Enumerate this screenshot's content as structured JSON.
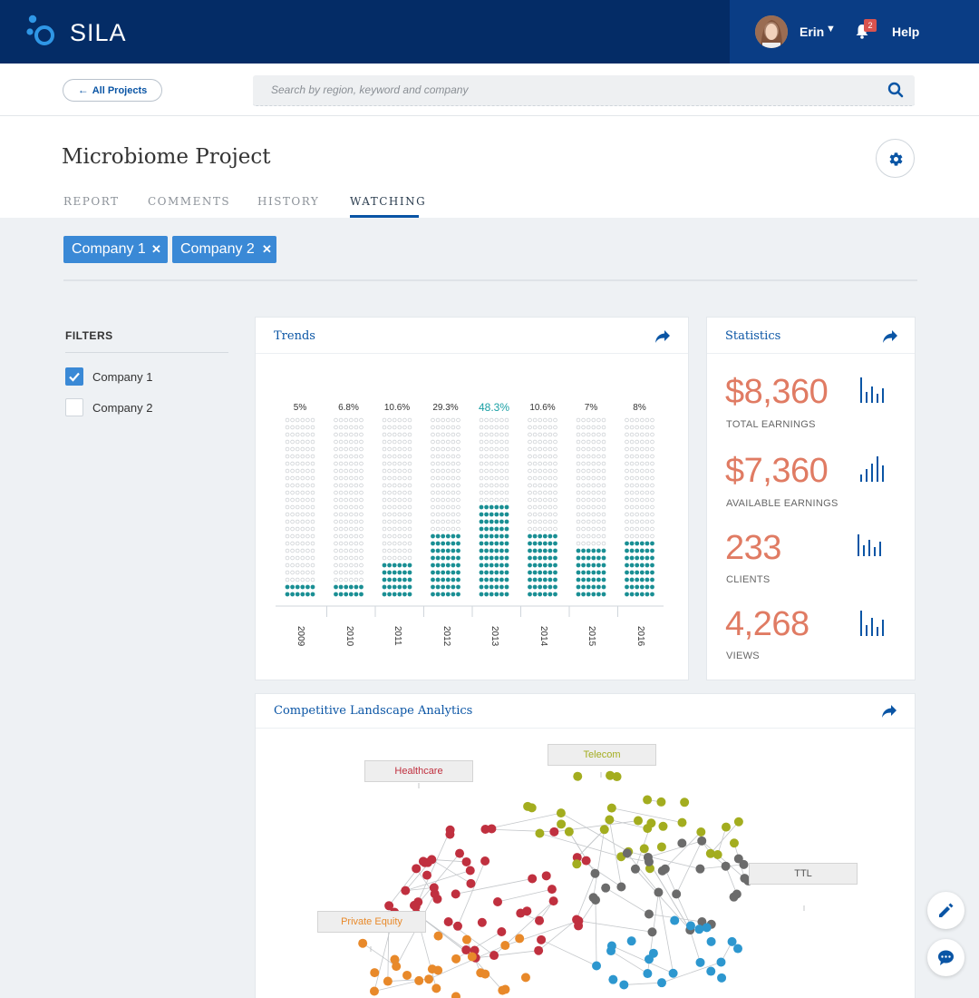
{
  "app": {
    "brand": "SILA"
  },
  "user": {
    "name": "Erin",
    "notifications": "2",
    "help_label": "Help"
  },
  "nav": {
    "back_label": "All Projects"
  },
  "search": {
    "placeholder": "Search by region, keyword and company"
  },
  "page": {
    "title": "Microbiome Project",
    "tabs": [
      {
        "label": "REPORT"
      },
      {
        "label": "COMMENTS"
      },
      {
        "label": "HISTORY"
      },
      {
        "label": "WATCHING"
      }
    ],
    "active_tab": "WATCHING"
  },
  "tags": [
    {
      "label": "Company 1"
    },
    {
      "label": "Company 2"
    }
  ],
  "filters": {
    "title": "FILTERS",
    "items": [
      {
        "label": "Company 1",
        "checked": true
      },
      {
        "label": "Company 2",
        "checked": false
      }
    ]
  },
  "trends": {
    "title": "Trends",
    "chart_data": {
      "type": "bar",
      "style": "dot-matrix",
      "categories": [
        "2009",
        "2010",
        "2011",
        "2012",
        "2013",
        "2014",
        "2015",
        "2016"
      ],
      "value_labels": [
        "5%",
        "6.8%",
        "10.6%",
        "29.3%",
        "48.3%",
        "10.6%",
        "7%",
        "8%"
      ],
      "highlight": "2013",
      "filled_rows": [
        2,
        2,
        5,
        9,
        13,
        9,
        7,
        8
      ],
      "total_rows": 25,
      "colors": {
        "filled": "#1a8f94",
        "empty": "#c9cdd1",
        "highlight_label": "#1aa0a5"
      }
    }
  },
  "statistics": {
    "title": "Statistics",
    "items": [
      {
        "value": "$8,360",
        "label": "TOTAL EARNINGS"
      },
      {
        "value": "$7,360",
        "label": "AVAILABLE EARNINGS"
      },
      {
        "value": "233",
        "label": "CLIENTS"
      },
      {
        "value": "4,268",
        "label": "VIEWS"
      }
    ],
    "value_color": "#e07b63"
  },
  "landscape": {
    "title": "Competitive Landscape Analytics",
    "clusters": [
      {
        "label": "Healthcare",
        "color": "#c0303f"
      },
      {
        "label": "Telecom",
        "color": "#a3ad1f"
      },
      {
        "label": "TTL",
        "color": "#6b6b6b"
      },
      {
        "label": "Private Equity",
        "color": "#e8892a"
      }
    ],
    "extra_color": "#2d97cf"
  }
}
